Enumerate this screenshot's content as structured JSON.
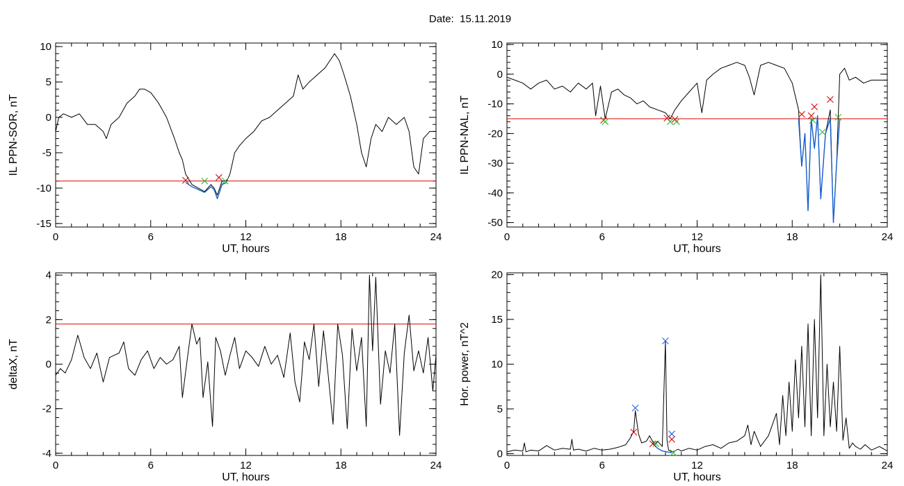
{
  "header": {
    "date_text": "Date:  15.11.2019"
  },
  "colors": {
    "trace": "#000000",
    "highlight": "#1560d0",
    "threshold": "#e00000",
    "start_marker": "#e00000",
    "end_marker": "#2db82d",
    "peak_marker": "#2060e0"
  },
  "chart_data": [
    {
      "id": "il-ppn-sor",
      "type": "line",
      "ylabel": "IL PPN-SOR, nT",
      "xlabel": "UT, hours",
      "xlim": [
        0,
        24
      ],
      "ylim": [
        -15.5,
        10.5
      ],
      "xticks": [
        0,
        6,
        12,
        18,
        24
      ],
      "yticks": [
        -15,
        -10,
        -5,
        0,
        5,
        10
      ],
      "threshold": -9,
      "series": [
        {
          "x": [
            0,
            0.2,
            0.5,
            1,
            1.5,
            2,
            2.5,
            3,
            3.2,
            3.5,
            4,
            4.5,
            5,
            5.3,
            5.6,
            6,
            6.5,
            7,
            7.5,
            7.8,
            8,
            8.2,
            8.6,
            9,
            9.4,
            9.8,
            10,
            10.2,
            10.5,
            10.8,
            11,
            11.3,
            11.6,
            12,
            12.5,
            13,
            13.5,
            14,
            14.5,
            15,
            15.3,
            15.6,
            16,
            16.5,
            17,
            17.3,
            17.6,
            17.9,
            18.2,
            18.6,
            19,
            19.3,
            19.6,
            19.9,
            20.2,
            20.6,
            21,
            21.5,
            22,
            22.3,
            22.6,
            22.9,
            23.2,
            23.6,
            24
          ],
          "y": [
            -2,
            0,
            0.5,
            0,
            0.5,
            -1,
            -1,
            -2,
            -3,
            -1,
            0,
            2,
            3,
            4,
            4,
            3.5,
            2,
            0,
            -3,
            -5,
            -6,
            -8,
            -9.5,
            -10,
            -10.5,
            -9.5,
            -10,
            -11,
            -9,
            -9,
            -8,
            -5,
            -4,
            -3,
            -2,
            -0.5,
            0,
            1,
            2,
            3,
            6,
            4,
            5,
            6,
            7,
            8,
            9,
            8,
            6,
            3,
            -1,
            -5,
            -7,
            -3,
            -1,
            -2,
            0,
            -1,
            0,
            -2,
            -7,
            -8,
            -3,
            -2,
            -2
          ]
        }
      ],
      "highlight_series": [
        {
          "x": [
            8.2,
            8.6,
            9,
            9.4,
            9.8,
            10,
            10.2,
            10.5,
            10.8
          ],
          "y": [
            -9.2,
            -9.8,
            -10.2,
            -10.6,
            -9.8,
            -10.2,
            -11.5,
            -9.5,
            -9.2
          ]
        }
      ],
      "start_markers": [
        {
          "x": 8.2,
          "y": -8.9
        },
        {
          "x": 10.3,
          "y": -8.5
        }
      ],
      "end_markers": [
        {
          "x": 9.4,
          "y": -9.0
        },
        {
          "x": 10.7,
          "y": -9.0
        }
      ],
      "peak_markers": []
    },
    {
      "id": "il-ppn-nal",
      "type": "line",
      "ylabel": "IL PPN-NAL, nT",
      "xlabel": "UT, hours",
      "xlim": [
        0,
        24
      ],
      "ylim": [
        -51.5,
        10.5
      ],
      "xticks": [
        0,
        6,
        12,
        18,
        24
      ],
      "yticks": [
        -50,
        -40,
        -30,
        -20,
        -10,
        0,
        10
      ],
      "threshold": -15,
      "series": [
        {
          "x": [
            0,
            0.5,
            1,
            1.5,
            2,
            2.5,
            3,
            3.5,
            4,
            4.5,
            5,
            5.4,
            5.6,
            5.9,
            6.2,
            6.6,
            7,
            7.4,
            7.8,
            8.2,
            8.6,
            9,
            9.5,
            10,
            10.3,
            10.6,
            11,
            11.5,
            12,
            12.3,
            12.6,
            13,
            13.5,
            14,
            14.5,
            15,
            15.3,
            15.6,
            16,
            16.5,
            17,
            17.5,
            18,
            18.4,
            18.6,
            18.8,
            19,
            19.2,
            19.4,
            19.6,
            19.8,
            20.1,
            20.4,
            20.6,
            20.8,
            21,
            21.3,
            21.6,
            22,
            22.5,
            23,
            23.5,
            24
          ],
          "y": [
            -1,
            -2,
            -3,
            -5,
            -3,
            -2,
            -5,
            -4,
            -6,
            -3,
            -5,
            -3,
            -14,
            -4,
            -15,
            -6,
            -5,
            -7,
            -8,
            -10,
            -9,
            -11,
            -12,
            -13,
            -15,
            -12,
            -9,
            -6,
            -3,
            -13,
            -2,
            0,
            2,
            3,
            4,
            3,
            -1,
            -7,
            3,
            4,
            3,
            2,
            -3,
            -12,
            -31,
            -20,
            -46,
            -15,
            -25,
            -14,
            -42,
            -20,
            -12,
            -50,
            -30,
            0,
            2,
            -2,
            -1,
            -3,
            -2,
            -2,
            -2
          ]
        }
      ],
      "highlight_series": [
        {
          "x": [
            18.4,
            18.6,
            18.8,
            19,
            19.2,
            19.4,
            19.6,
            19.8,
            20.1,
            20.4,
            20.6,
            20.8,
            21
          ],
          "y": [
            -15,
            -31,
            -20,
            -46,
            -15,
            -25,
            -14,
            -42,
            -20,
            -15,
            -50,
            -30,
            -15
          ]
        }
      ],
      "start_markers": [
        {
          "x": 6.1,
          "y": -15.5
        },
        {
          "x": 10.1,
          "y": -14.8
        },
        {
          "x": 10.6,
          "y": -15.2
        },
        {
          "x": 18.6,
          "y": -13.5
        },
        {
          "x": 19.2,
          "y": -14
        },
        {
          "x": 19.4,
          "y": -11
        },
        {
          "x": 20.4,
          "y": -8.5
        }
      ],
      "end_markers": [
        {
          "x": 6.2,
          "y": -16
        },
        {
          "x": 10.3,
          "y": -16
        },
        {
          "x": 10.7,
          "y": -16
        },
        {
          "x": 19.3,
          "y": -15.5
        },
        {
          "x": 19.9,
          "y": -19.5
        },
        {
          "x": 20.9,
          "y": -14.5
        }
      ],
      "peak_markers": []
    },
    {
      "id": "delta-x",
      "type": "line",
      "ylabel": "deltaX, nT",
      "xlabel": "UT, hours",
      "xlim": [
        0,
        24
      ],
      "ylim": [
        -4.1,
        4.1
      ],
      "xticks": [
        0,
        6,
        12,
        18,
        24
      ],
      "yticks": [
        -4,
        -2,
        0,
        2,
        4
      ],
      "threshold": 1.8,
      "series": [
        {
          "x": [
            0,
            0.3,
            0.6,
            1,
            1.4,
            1.8,
            2.2,
            2.6,
            3,
            3.4,
            3.7,
            4,
            4.3,
            4.6,
            5,
            5.4,
            5.8,
            6.2,
            6.6,
            7,
            7.4,
            7.8,
            8,
            8.3,
            8.6,
            8.9,
            9.1,
            9.3,
            9.6,
            9.9,
            10.1,
            10.4,
            10.7,
            11,
            11.3,
            11.6,
            12,
            12.4,
            12.8,
            13.2,
            13.6,
            14,
            14.4,
            14.8,
            15.1,
            15.4,
            15.7,
            16,
            16.3,
            16.6,
            16.9,
            17.2,
            17.5,
            17.8,
            18.1,
            18.4,
            18.7,
            19,
            19.3,
            19.6,
            19.8,
            20,
            20.2,
            20.5,
            20.8,
            21.1,
            21.4,
            21.7,
            22,
            22.3,
            22.6,
            22.9,
            23.2,
            23.5,
            23.8,
            24
          ],
          "y": [
            -0.5,
            -0.2,
            -0.4,
            0.2,
            1.3,
            0.3,
            -0.2,
            0.5,
            -0.8,
            0.3,
            0.4,
            0.5,
            1.0,
            -0.2,
            -0.5,
            0.2,
            0.6,
            -0.2,
            0.3,
            0.0,
            0.2,
            0.8,
            -1.5,
            0.2,
            1.8,
            0.9,
            1.2,
            -1.5,
            0.1,
            -2.8,
            1.2,
            0.6,
            -0.5,
            0.4,
            1.2,
            -0.2,
            0.6,
            0.3,
            -0.1,
            0.8,
            0.0,
            0.4,
            -0.6,
            1.4,
            -0.8,
            -1.7,
            1.0,
            0.2,
            1.8,
            -1.0,
            1.5,
            -0.5,
            -2.7,
            1.8,
            0.4,
            -2.9,
            1.6,
            -0.3,
            1.2,
            -2.8,
            4.0,
            0.6,
            3.9,
            -1.8,
            0.6,
            -0.4,
            1.8,
            -3.2,
            0.5,
            2.2,
            -0.3,
            0.6,
            -0.4,
            1.2,
            -1.2,
            0.4
          ]
        }
      ],
      "highlight_series": [],
      "start_markers": [],
      "end_markers": [],
      "peak_markers": []
    },
    {
      "id": "hor-power",
      "type": "line",
      "ylabel": "Hor. power, nT^2",
      "xlabel": "UT, hours",
      "xlim": [
        0,
        24
      ],
      "ylim": [
        -0.2,
        20.2
      ],
      "xticks": [
        0,
        6,
        12,
        18,
        24
      ],
      "yticks": [
        0,
        5,
        10,
        15,
        20
      ],
      "threshold": null,
      "series": [
        {
          "x": [
            0,
            0.5,
            1,
            1.1,
            1.2,
            1.5,
            2,
            2.5,
            3,
            3.5,
            4,
            4.1,
            4.2,
            4.5,
            5,
            5.5,
            6,
            6.5,
            7,
            7.5,
            7.8,
            8,
            8.1,
            8.3,
            8.5,
            8.8,
            9,
            9.3,
            9.5,
            9.8,
            10,
            10.1,
            10.2,
            10.4,
            10.6,
            10.8,
            11,
            11.5,
            12,
            12.5,
            13,
            13.5,
            14,
            14.5,
            15,
            15.2,
            15.4,
            15.6,
            16,
            16.5,
            17,
            17.2,
            17.4,
            17.6,
            17.8,
            18,
            18.2,
            18.4,
            18.6,
            18.8,
            19,
            19.2,
            19.4,
            19.6,
            19.8,
            20,
            20.2,
            20.4,
            20.6,
            20.8,
            21,
            21.2,
            21.4,
            21.6,
            21.8,
            22,
            22.3,
            22.6,
            23,
            23.5,
            24
          ],
          "y": [
            0.2,
            0.4,
            0.3,
            1.2,
            0.2,
            0.4,
            0.3,
            0.9,
            0.4,
            0.6,
            0.5,
            1.6,
            0.4,
            0.5,
            0.3,
            0.6,
            0.4,
            0.5,
            0.7,
            1.0,
            1.8,
            2.5,
            4.8,
            2.2,
            1.2,
            1.4,
            2.0,
            1.0,
            1.4,
            0.8,
            12.6,
            1.5,
            0.4,
            0.2,
            0.3,
            0.5,
            0.3,
            0.6,
            0.4,
            0.8,
            1.0,
            0.6,
            1.2,
            1.4,
            2.0,
            3.2,
            1.0,
            2.5,
            0.8,
            2.0,
            4.5,
            1.0,
            6.5,
            2.0,
            8.0,
            2.5,
            10.5,
            4.0,
            12.0,
            3.0,
            14.5,
            2.0,
            15.0,
            4.0,
            20.0,
            2.0,
            10.0,
            3.0,
            8.0,
            2.5,
            12.0,
            1.5,
            4.0,
            0.6,
            1.2,
            0.8,
            0.5,
            1.0,
            0.4,
            0.8,
            0.3
          ]
        }
      ],
      "highlight_series": [
        {
          "x": [
            9.2,
            9.5,
            9.8,
            10.1,
            10.4
          ],
          "y": [
            1.2,
            0.6,
            0.3,
            0.2,
            0.1
          ]
        }
      ],
      "start_markers": [
        {
          "x": 8.0,
          "y": 2.4
        },
        {
          "x": 9.2,
          "y": 1.1
        },
        {
          "x": 10.4,
          "y": 1.6
        }
      ],
      "end_markers": [
        {
          "x": 9.4,
          "y": 1.1
        },
        {
          "x": 10.5,
          "y": 0.1
        }
      ],
      "peak_markers": [
        {
          "x": 8.1,
          "y": 5.1
        },
        {
          "x": 10.0,
          "y": 12.6
        },
        {
          "x": 10.4,
          "y": 2.2
        }
      ]
    }
  ]
}
